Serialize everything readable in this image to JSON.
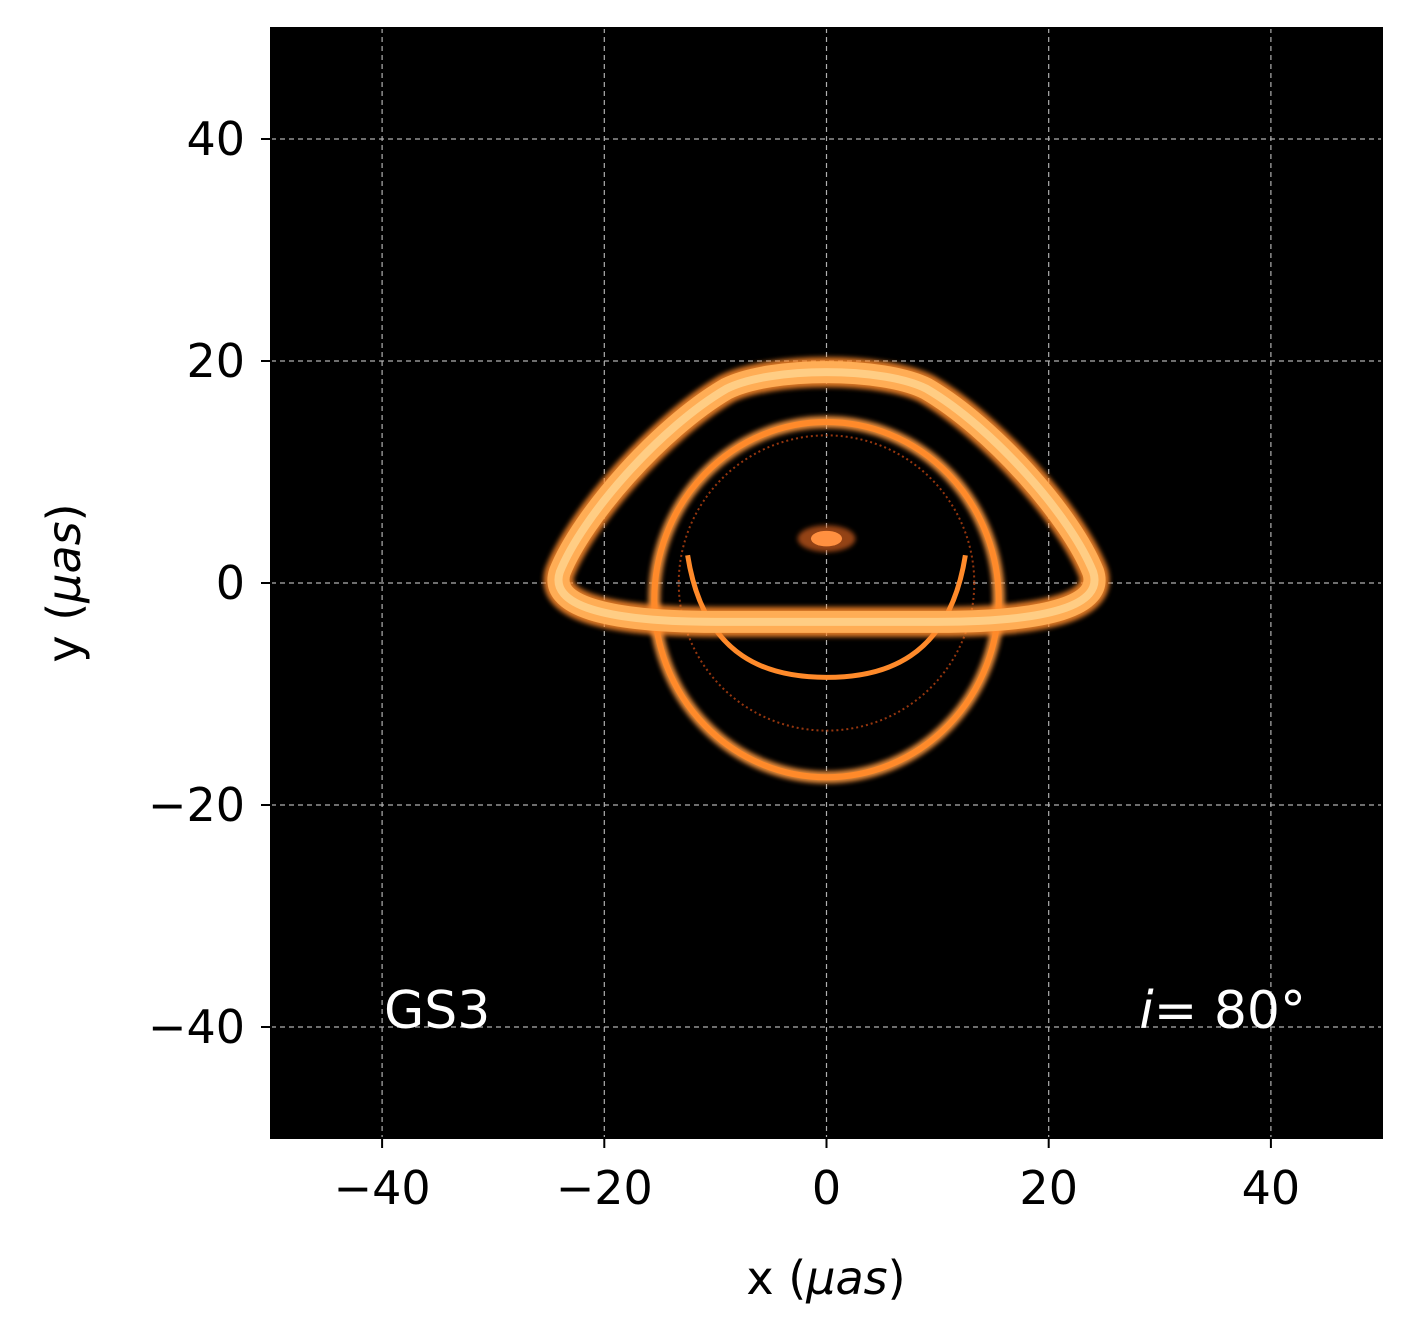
{
  "chart_data": {
    "type": "heatmap",
    "xlabel": {
      "prefix": "x (",
      "unit": "μas",
      "suffix": ")"
    },
    "ylabel": {
      "prefix": "y (",
      "unit": "μas",
      "suffix": ")"
    },
    "xlim": [
      -50,
      50
    ],
    "ylim": [
      -50,
      50
    ],
    "xticks": [
      -40,
      -20,
      0,
      20,
      40
    ],
    "yticks": [
      -40,
      -20,
      0,
      20,
      40
    ],
    "xtick_labels": [
      "−40",
      "−20",
      "0",
      "20",
      "40"
    ],
    "ytick_labels": [
      "−40",
      "−20",
      "0",
      "20",
      "40"
    ],
    "grid": true,
    "background_color": "#000000",
    "colormap": "afmhot",
    "annotations": {
      "model": "GS3",
      "inclination": {
        "symbol": "i",
        "value": "= 80°"
      }
    },
    "features": {
      "direct_image_top_y": 19.5,
      "direct_image_bottom_y": -3.5,
      "direct_image_half_width": 24,
      "secondary_ring_center": [
        0,
        -1.5
      ],
      "secondary_ring_radius_x": 15.5,
      "secondary_ring_bottom_y": -17.5,
      "inner_arc_bottom_y": -8.5,
      "photon_ring_radius": 13.3,
      "central_spot": [
        0,
        4
      ]
    }
  }
}
